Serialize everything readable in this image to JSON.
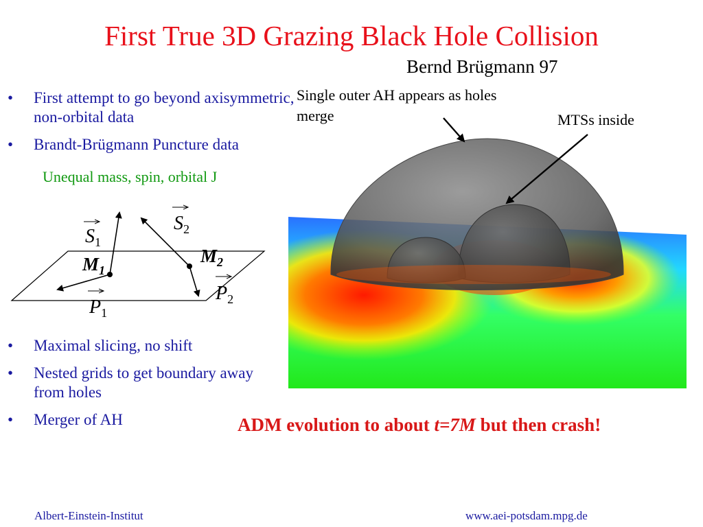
{
  "slide": {
    "title": "First True 3D Grazing Black Hole Collision",
    "subtitle": "Bernd Brügmann 97",
    "bullets_top": [
      {
        "text": "First attempt to go beyond axisymmetric, non-orbital data"
      },
      {
        "text": "Brandt-Brügmann Puncture data"
      }
    ],
    "sub_note": "Unequal mass, spin, orbital J",
    "bullets_bottom": [
      {
        "text": "Maximal slicing, no shift"
      },
      {
        "text": "Nested grids to get boundary away from holes"
      },
      {
        "text": "Merger of AH"
      }
    ],
    "bullet_symbol": "•",
    "annotations": {
      "outer_ah": "Single outer AH appears as holes merge",
      "mts": "MTSs inside"
    },
    "conclusion": {
      "prefix": "ADM evolution to about ",
      "emph": "t=7M",
      "suffix": " but then crash!"
    },
    "footer": {
      "left": "Albert-Einstein-Institut",
      "right": "www.aei-potsdam.mpg.de"
    },
    "colors": {
      "title": "#e8101a",
      "bullets": "#1a1aa0",
      "sub_note": "#119911",
      "conclusion": "#d81818"
    }
  },
  "diagram": {
    "s1": {
      "base": "S",
      "sub": "1"
    },
    "s2": {
      "base": "S",
      "sub": "2"
    },
    "m1": {
      "base": "M",
      "sub": "1"
    },
    "m2": {
      "base": "M",
      "sub": "2"
    },
    "p1": {
      "base": "P",
      "sub": "1"
    },
    "p2": {
      "base": "P",
      "sub": "2"
    }
  }
}
